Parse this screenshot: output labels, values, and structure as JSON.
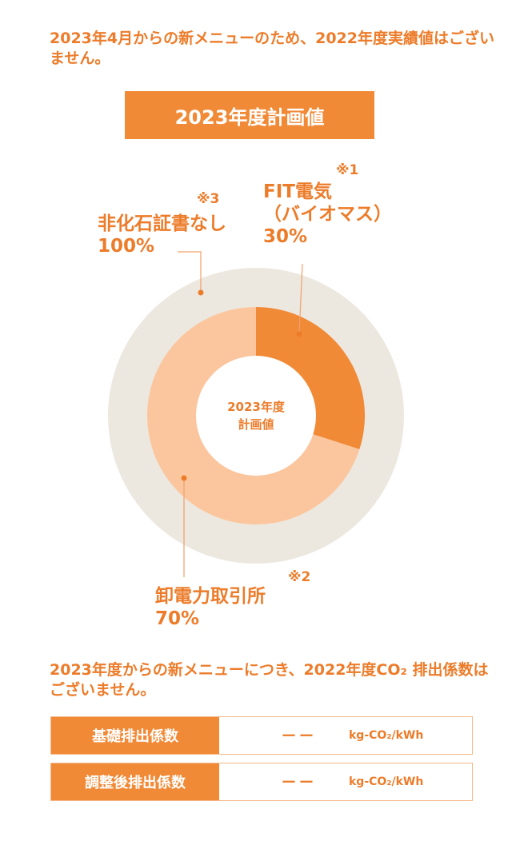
{
  "notice_top": "2023年4月からの新メニューのため、2022年度実績値はございません。",
  "plan_box": "2023年度計画値",
  "chart_data": {
    "type": "pie",
    "title": "2023年度計画値",
    "center_label": [
      "2023年度",
      "計画値"
    ],
    "outer_ring": {
      "slices": [
        {
          "label": "非化石証書なし",
          "value": 100,
          "display": "100%",
          "note": "※3",
          "color": "#ece8df"
        }
      ]
    },
    "inner_ring": {
      "slices": [
        {
          "label": "FIT電気",
          "sublabel": "（バイオマス）",
          "value": 30,
          "display": "30%",
          "note": "※1",
          "color": "#f18a37"
        },
        {
          "label": "卸電力取引所",
          "value": 70,
          "display": "70%",
          "note": "※2",
          "color": "#fbc69e"
        }
      ]
    }
  },
  "notice_bottom": "2023年度からの新メニューにつき、2022年度CO₂ 排出係数はございません。",
  "table": [
    {
      "label": "基礎排出係数",
      "value": "ーー",
      "unit": "kg-CO₂/kWh"
    },
    {
      "label": "調整後排出係数",
      "value": "ーー",
      "unit": "kg-CO₂/kWh"
    }
  ]
}
